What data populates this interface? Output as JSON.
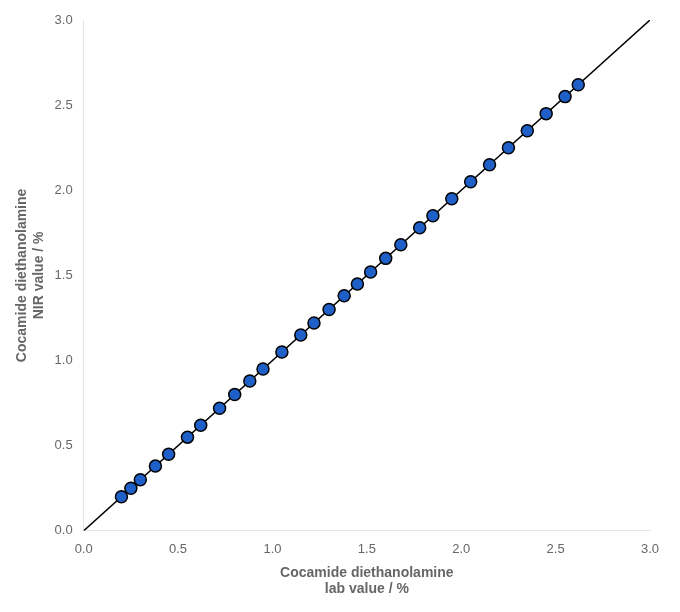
{
  "chart_data": {
    "type": "scatter",
    "x_label": [
      "Cocamide diethanolamine",
      "lab value / %"
    ],
    "y_label": [
      "Cocamide diethanolamine",
      "NIR value / %"
    ],
    "series": [
      {
        "type": "scatter",
        "color": "#1f5fc8",
        "x": [
          0.2,
          0.25,
          0.3,
          0.38,
          0.45,
          0.55,
          0.62,
          0.72,
          0.8,
          0.88,
          0.95,
          1.05,
          1.15,
          1.22,
          1.3,
          1.38,
          1.45,
          1.52,
          1.6,
          1.68,
          1.78,
          1.85,
          1.95,
          2.05,
          2.15,
          2.25,
          2.35,
          2.45,
          2.55,
          2.62
        ],
        "values": [
          0.2,
          0.25,
          0.3,
          0.38,
          0.45,
          0.55,
          0.62,
          0.72,
          0.8,
          0.88,
          0.95,
          1.05,
          1.15,
          1.22,
          1.3,
          1.38,
          1.45,
          1.52,
          1.6,
          1.68,
          1.78,
          1.85,
          1.95,
          2.05,
          2.15,
          2.25,
          2.35,
          2.45,
          2.55,
          2.62
        ]
      },
      {
        "type": "line",
        "color": "#000000",
        "x": [
          0.0,
          3.0
        ],
        "values": [
          0.0,
          3.0
        ]
      }
    ],
    "xlim": [
      0.0,
      3.0
    ],
    "ylim": [
      0.0,
      3.0
    ],
    "xticks": [
      {
        "value": 0.0,
        "label": "0.0"
      },
      0.5,
      {
        "value": 1.0,
        "label": "1.0"
      },
      1.5,
      {
        "value": 2.0,
        "label": "2.0"
      },
      2.5,
      {
        "value": 3.0,
        "label": "3.0"
      }
    ],
    "yticks": [
      {
        "value": 0.0,
        "label": "0.0"
      },
      0.5,
      {
        "value": 1.0,
        "label": "1.0"
      },
      1.5,
      {
        "value": 2.0,
        "label": "2.0"
      },
      2.5,
      {
        "value": 3.0,
        "label": "3.0"
      }
    ],
    "grid": false
  }
}
